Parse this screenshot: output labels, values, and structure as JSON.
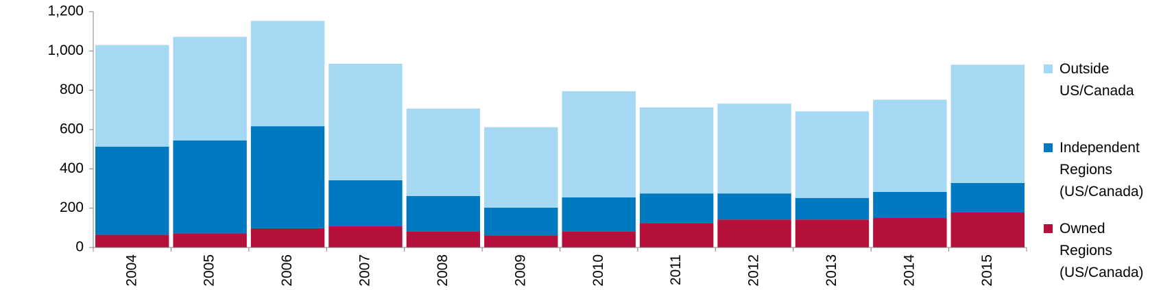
{
  "chart_data": {
    "type": "stacked_bar",
    "categories": [
      "2004",
      "2005",
      "2006",
      "2007",
      "2008",
      "2009",
      "2010",
      "2011",
      "2012",
      "2013",
      "2014",
      "2015"
    ],
    "series": [
      {
        "name": "Owned Regions (US/Canada)",
        "color": "#b5103c",
        "values": [
          65,
          72,
          98,
          108,
          83,
          62,
          83,
          125,
          142,
          142,
          150,
          178
        ]
      },
      {
        "name": "Independent Regions (US/Canada)",
        "color": "#0079c1",
        "values": [
          448,
          473,
          519,
          234,
          179,
          141,
          172,
          150,
          133,
          110,
          133,
          150
        ]
      },
      {
        "name": "Outside US/Canada",
        "color": "#a5d8f3",
        "values": [
          517,
          527,
          536,
          593,
          445,
          409,
          540,
          438,
          457,
          441,
          469,
          602
        ]
      }
    ],
    "ylim": [
      0,
      1200
    ],
    "yticks": [
      0,
      200,
      400,
      600,
      800,
      {
        "value": 1000,
        "label": "1,000"
      },
      {
        "value": 1200,
        "label": "1,200"
      }
    ],
    "grid": false,
    "legend_position": "right"
  }
}
